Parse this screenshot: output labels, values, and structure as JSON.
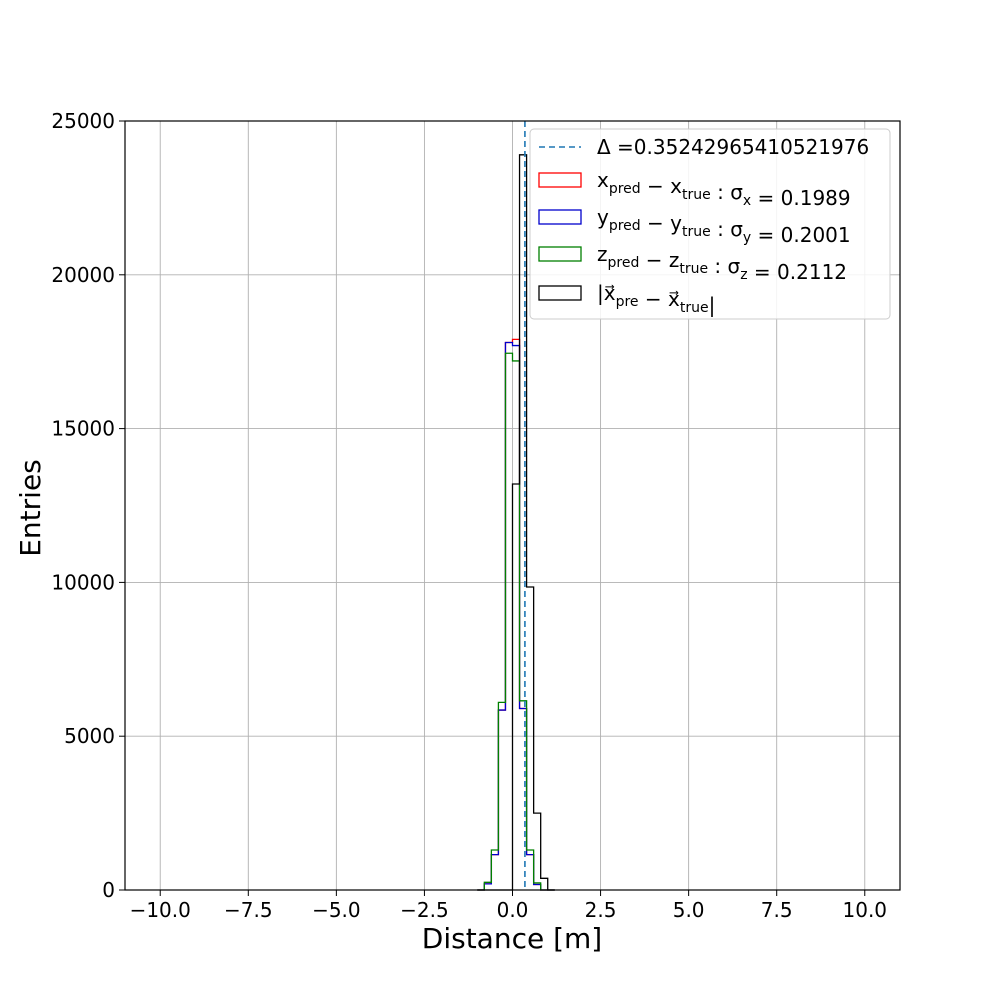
{
  "chart_data": {
    "type": "histogram",
    "xlabel": "Distance [m]",
    "ylabel": "Entries",
    "xlim": [
      -11.0,
      11.0
    ],
    "ylim": [
      0,
      25000
    ],
    "xticks": [
      -10.0,
      -7.5,
      -5.0,
      -2.5,
      0.0,
      2.5,
      5.0,
      7.5,
      10.0
    ],
    "xtick_labels": [
      "−10.0",
      "−7.5",
      "−5.0",
      "−2.5",
      "0.0",
      "2.5",
      "5.0",
      "7.5",
      "10.0"
    ],
    "yticks": [
      0,
      5000,
      10000,
      15000,
      20000,
      25000
    ],
    "ytick_labels": [
      "0",
      "5000",
      "10000",
      "15000",
      "20000",
      "25000"
    ],
    "grid": true,
    "legend_position": "upper right",
    "bin_edges": [
      -1.0,
      -0.8,
      -0.6,
      -0.4,
      -0.2,
      0.0,
      0.2,
      0.4,
      0.6,
      0.8,
      1.0,
      1.2
    ],
    "vline": {
      "x": 0.35242965410521976,
      "color": "#1f77b4",
      "style": "dashed",
      "legend_label": "Δ =0.35242965410521976"
    },
    "series": [
      {
        "color": "#ff0000",
        "legend": [
          {
            "t": "x",
            "s": "pred"
          },
          {
            "t": " − x",
            "s": "true"
          },
          {
            "t": " :  σ",
            "s": "x"
          },
          {
            "t": " = 0.1989"
          }
        ],
        "values": [
          0,
          200,
          1150,
          5850,
          17800,
          17900,
          5900,
          1150,
          180,
          0,
          0
        ]
      },
      {
        "color": "#0000cc",
        "legend": [
          {
            "t": "y",
            "s": "pred"
          },
          {
            "t": " − y",
            "s": "true"
          },
          {
            "t": " :  σ",
            "s": "y"
          },
          {
            "t": " = 0.2001"
          }
        ],
        "values": [
          0,
          200,
          1150,
          5850,
          17800,
          17700,
          5900,
          1150,
          180,
          0,
          0
        ]
      },
      {
        "color": "#008000",
        "legend": [
          {
            "t": "z",
            "s": "pred"
          },
          {
            "t": " − z",
            "s": "true"
          },
          {
            "t": " :  σ",
            "s": "z"
          },
          {
            "t": " = 0.2112"
          }
        ],
        "values": [
          0,
          250,
          1300,
          6100,
          17450,
          17200,
          6150,
          1300,
          230,
          0,
          0
        ]
      },
      {
        "color": "#000000",
        "legend": [
          {
            "t": "|x⃗",
            "s": "pre"
          },
          {
            "t": " − x⃗",
            "s": "true"
          },
          {
            "t": "|"
          }
        ],
        "values": [
          0,
          0,
          0,
          0,
          0,
          13200,
          23900,
          9850,
          2500,
          380,
          0
        ]
      }
    ]
  }
}
